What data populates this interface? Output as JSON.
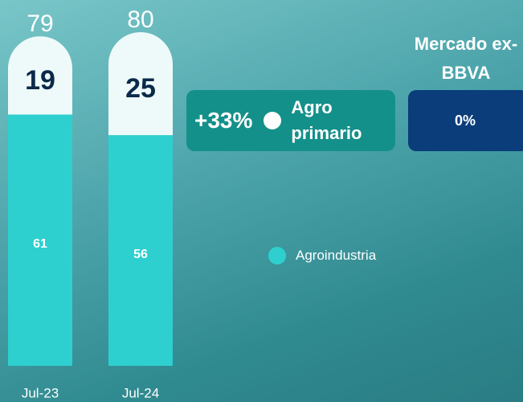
{
  "chart_data": {
    "type": "bar",
    "categories": [
      "Jul-23",
      "Jul-24"
    ],
    "series": [
      {
        "name": "Agroindustria",
        "color": "#2ecfcf",
        "values": [
          61,
          56
        ]
      },
      {
        "name": "Agro primario",
        "color": "#eefafa",
        "values": [
          19,
          25
        ]
      }
    ],
    "totals": [
      79,
      80
    ],
    "growth": "+33%",
    "market": {
      "label": "Mercado ex-BBVA",
      "value": "0%"
    }
  }
}
